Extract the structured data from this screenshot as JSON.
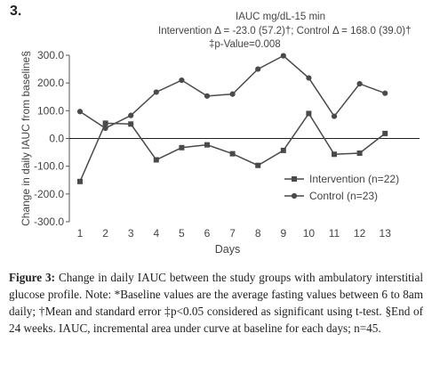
{
  "panel_label": "3.",
  "annotation": {
    "title": "IAUC mg/dL-15 min",
    "stats": "Intervention Δ = -23.0 (57.2)†; Control Δ = 168.0 (39.0)†",
    "pvalue": "‡p-Value=0.008"
  },
  "caption": {
    "label": "Figure 3:",
    "text": " Change in daily IAUC between the study groups with ambulatory interstitial glucose profile. Note: *Baseline values are the average fasting values between 6 to 8am daily; †Mean and standard error ‡p<0.05 considered as significant using t-test. §End of 24 weeks. IAUC, incremental area under curve at baseline for each days; n=45."
  },
  "chart_data": {
    "type": "line",
    "x": [
      1,
      2,
      3,
      4,
      5,
      6,
      7,
      8,
      9,
      10,
      11,
      12,
      13
    ],
    "x_tick_labels": [
      "1",
      "2",
      "3",
      "4",
      "5",
      "6",
      "7",
      "8",
      "9",
      "10",
      "11",
      "12",
      "13"
    ],
    "y_tick_labels": [
      "300.0",
      "200.0",
      "100.0",
      "0.0",
      "-100.0",
      "-200.0",
      "-300.0"
    ],
    "series": [
      {
        "name": "Intervention (n=22)",
        "marker": "square",
        "values": [
          -155,
          55,
          52,
          -77,
          -33,
          -23,
          -55,
          -97,
          -43,
          90,
          -57,
          -53,
          18
        ]
      },
      {
        "name": "Control (n=23)",
        "marker": "circle",
        "values": [
          97,
          37,
          83,
          167,
          210,
          153,
          160,
          250,
          298,
          218,
          80,
          197,
          163
        ]
      }
    ],
    "xlabel": "Days",
    "ylabel": "Change in daily IAUC from baseline§",
    "ylim": [
      -300,
      300
    ],
    "grid": false,
    "legend_position": "lower-right",
    "zero_line": true,
    "colors": {
      "line": "#4a4a4a",
      "axis": "#555555",
      "text": "#444444"
    }
  }
}
